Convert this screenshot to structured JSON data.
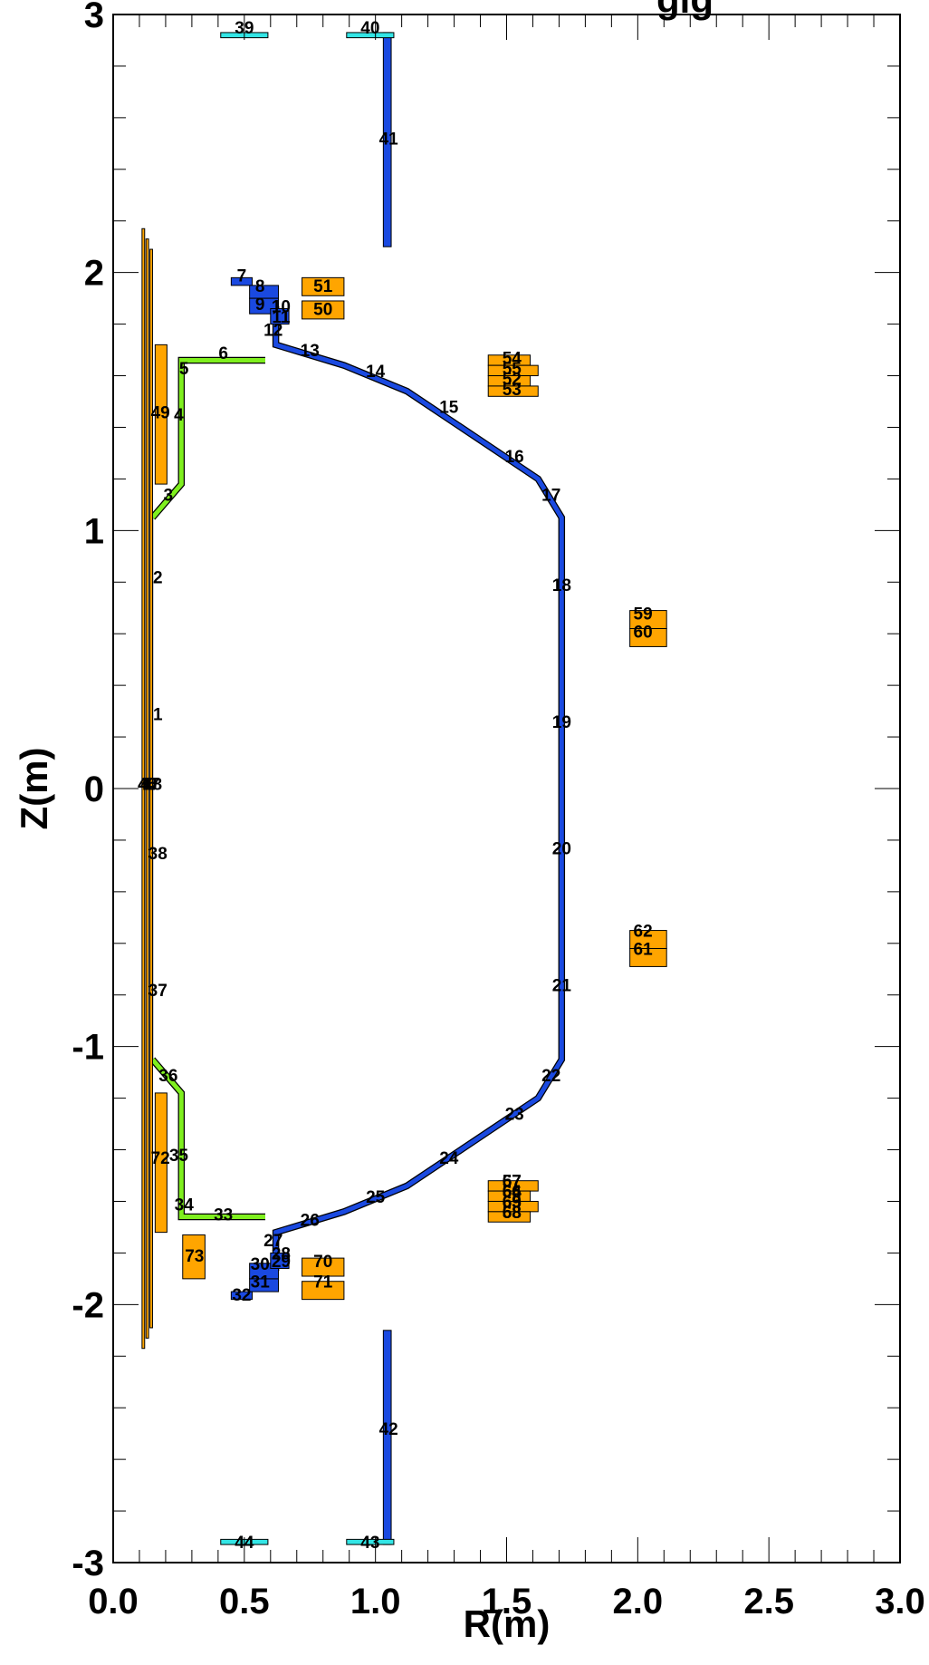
{
  "title_fragment": "gig",
  "chart_data": {
    "type": "diagram",
    "xlabel": "R(m)",
    "ylabel": "Z(m)",
    "xlim": [
      0.0,
      3.0
    ],
    "ylim": [
      -3.0,
      3.0
    ],
    "xticks": [
      {
        "v": 0.0,
        "t": "0.0"
      },
      {
        "v": 0.5,
        "t": "0.5"
      },
      {
        "v": 1.0,
        "t": "1.0"
      },
      {
        "v": 1.5,
        "t": "1.5"
      },
      {
        "v": 2.0,
        "t": "2.0"
      },
      {
        "v": 2.5,
        "t": "2.5"
      },
      {
        "v": 3.0,
        "t": "3.0"
      }
    ],
    "yticks": [
      {
        "v": 3,
        "t": "3"
      },
      {
        "v": 2,
        "t": "2"
      },
      {
        "v": 1,
        "t": "1"
      },
      {
        "v": 0,
        "t": "0"
      },
      {
        "v": -1,
        "t": "-1"
      },
      {
        "v": -2,
        "t": "-2"
      },
      {
        "v": -3,
        "t": "-3"
      }
    ],
    "colors": {
      "vessel": "#1a49e0",
      "green": "#7fef1f",
      "orange": "#ffa500",
      "cyan": "#33e5e5",
      "outline": "#000000"
    },
    "rects": [
      {
        "c": "orange",
        "r0": 0.11,
        "r1": 0.12,
        "z0": -2.17,
        "z1": 2.17
      },
      {
        "c": "orange",
        "r0": 0.125,
        "r1": 0.135,
        "z0": -2.13,
        "z1": 2.13
      },
      {
        "c": "orange",
        "r0": 0.14,
        "r1": 0.15,
        "z0": -2.09,
        "z1": 2.09
      },
      {
        "c": "orange",
        "r0": 0.16,
        "r1": 0.205,
        "z0": 1.18,
        "z1": 1.72
      },
      {
        "c": "orange",
        "r0": 0.16,
        "r1": 0.205,
        "z0": -1.72,
        "z1": -1.18
      },
      {
        "c": "orange",
        "r0": 0.265,
        "r1": 0.35,
        "z0": -1.9,
        "z1": -1.73
      },
      {
        "c": "orange",
        "r0": 0.72,
        "r1": 0.88,
        "z0": 1.91,
        "z1": 1.98
      },
      {
        "c": "orange",
        "r0": 0.72,
        "r1": 0.88,
        "z0": 1.82,
        "z1": 1.89
      },
      {
        "c": "orange",
        "r0": 1.43,
        "r1": 1.59,
        "z0": 1.64,
        "z1": 1.68
      },
      {
        "c": "orange",
        "r0": 1.43,
        "r1": 1.62,
        "z0": 1.6,
        "z1": 1.64
      },
      {
        "c": "orange",
        "r0": 1.43,
        "r1": 1.59,
        "z0": 1.56,
        "z1": 1.6
      },
      {
        "c": "orange",
        "r0": 1.43,
        "r1": 1.62,
        "z0": 1.52,
        "z1": 1.56
      },
      {
        "c": "orange",
        "r0": 1.97,
        "r1": 2.11,
        "z0": 0.62,
        "z1": 0.69
      },
      {
        "c": "orange",
        "r0": 1.97,
        "r1": 2.11,
        "z0": 0.55,
        "z1": 0.62
      },
      {
        "c": "orange",
        "r0": 1.97,
        "r1": 2.11,
        "z0": -0.62,
        "z1": -0.55
      },
      {
        "c": "orange",
        "r0": 1.97,
        "r1": 2.11,
        "z0": -0.69,
        "z1": -0.62
      },
      {
        "c": "orange",
        "r0": 1.43,
        "r1": 1.62,
        "z0": -1.56,
        "z1": -1.52
      },
      {
        "c": "orange",
        "r0": 1.43,
        "r1": 1.59,
        "z0": -1.6,
        "z1": -1.56
      },
      {
        "c": "orange",
        "r0": 1.43,
        "r1": 1.62,
        "z0": -1.64,
        "z1": -1.6
      },
      {
        "c": "orange",
        "r0": 1.43,
        "r1": 1.59,
        "z0": -1.68,
        "z1": -1.64
      },
      {
        "c": "orange",
        "r0": 0.72,
        "r1": 0.88,
        "z0": -1.89,
        "z1": -1.82
      },
      {
        "c": "orange",
        "r0": 0.72,
        "r1": 0.88,
        "z0": -1.98,
        "z1": -1.91
      },
      {
        "c": "vessel",
        "r0": 1.03,
        "r1": 1.06,
        "z0": 2.1,
        "z1": 2.93
      },
      {
        "c": "vessel",
        "r0": 1.03,
        "r1": 1.06,
        "z0": -2.93,
        "z1": -2.1
      },
      {
        "c": "cyan",
        "r0": 0.41,
        "r1": 0.59,
        "z0": 2.91,
        "z1": 2.93
      },
      {
        "c": "cyan",
        "r0": 0.89,
        "r1": 1.07,
        "z0": 2.91,
        "z1": 2.93
      },
      {
        "c": "cyan",
        "r0": 0.41,
        "r1": 0.59,
        "z0": -2.93,
        "z1": -2.91
      },
      {
        "c": "cyan",
        "r0": 0.89,
        "r1": 1.07,
        "z0": -2.93,
        "z1": -2.91
      },
      {
        "c": "vessel",
        "r0": 0.45,
        "r1": 0.53,
        "z0": 1.95,
        "z1": 1.98
      },
      {
        "c": "vessel",
        "r0": 0.52,
        "r1": 0.63,
        "z0": 1.9,
        "z1": 1.95
      },
      {
        "c": "vessel",
        "r0": 0.52,
        "r1": 0.63,
        "z0": 1.84,
        "z1": 1.9
      },
      {
        "c": "vessel",
        "r0": 0.6,
        "r1": 0.67,
        "z0": 1.8,
        "z1": 1.86
      },
      {
        "c": "vessel",
        "r0": 0.45,
        "r1": 0.53,
        "z0": -1.98,
        "z1": -1.95
      },
      {
        "c": "vessel",
        "r0": 0.52,
        "r1": 0.63,
        "z0": -1.95,
        "z1": -1.9
      },
      {
        "c": "vessel",
        "r0": 0.52,
        "r1": 0.63,
        "z0": -1.9,
        "z1": -1.84
      },
      {
        "c": "vessel",
        "r0": 0.6,
        "r1": 0.67,
        "z0": -1.86,
        "z1": -1.8
      }
    ],
    "vessel_outline": [
      [
        0.62,
        1.87
      ],
      [
        0.62,
        1.72
      ],
      [
        0.88,
        1.64
      ],
      [
        1.12,
        1.54
      ],
      [
        1.4,
        1.35
      ],
      [
        1.62,
        1.2
      ],
      [
        1.71,
        1.05
      ],
      [
        1.71,
        -1.05
      ],
      [
        1.62,
        -1.2
      ],
      [
        1.4,
        -1.35
      ],
      [
        1.12,
        -1.54
      ],
      [
        0.88,
        -1.64
      ],
      [
        0.62,
        -1.72
      ],
      [
        0.62,
        -1.87
      ]
    ],
    "green_outline_upper": [
      [
        0.15,
        1.05
      ],
      [
        0.26,
        1.18
      ],
      [
        0.26,
        1.66
      ],
      [
        0.58,
        1.66
      ]
    ],
    "green_outline_lower": [
      [
        0.15,
        -1.05
      ],
      [
        0.26,
        -1.18
      ],
      [
        0.26,
        -1.66
      ],
      [
        0.58,
        -1.66
      ]
    ],
    "inner_wall_line": {
      "r": 0.15,
      "z0": -1.05,
      "z1": 1.05
    },
    "labels": [
      {
        "t": "1",
        "r": 0.17,
        "z": 0.29
      },
      {
        "t": "2",
        "r": 0.17,
        "z": 0.82
      },
      {
        "t": "3",
        "r": 0.21,
        "z": 1.14
      },
      {
        "t": "4",
        "r": 0.25,
        "z": 1.45
      },
      {
        "t": "5",
        "r": 0.27,
        "z": 1.63
      },
      {
        "t": "6",
        "r": 0.42,
        "z": 1.69
      },
      {
        "t": "7",
        "r": 0.49,
        "z": 1.99
      },
      {
        "t": "8",
        "r": 0.56,
        "z": 1.95
      },
      {
        "t": "9",
        "r": 0.56,
        "z": 1.88
      },
      {
        "t": "10",
        "r": 0.64,
        "z": 1.87
      },
      {
        "t": "11",
        "r": 0.64,
        "z": 1.83
      },
      {
        "t": "12",
        "r": 0.61,
        "z": 1.78
      },
      {
        "t": "13",
        "r": 0.75,
        "z": 1.7
      },
      {
        "t": "14",
        "r": 1.0,
        "z": 1.62
      },
      {
        "t": "15",
        "r": 1.28,
        "z": 1.48
      },
      {
        "t": "16",
        "r": 1.53,
        "z": 1.29
      },
      {
        "t": "17",
        "r": 1.67,
        "z": 1.14
      },
      {
        "t": "18",
        "r": 1.71,
        "z": 0.79
      },
      {
        "t": "19",
        "r": 1.71,
        "z": 0.26
      },
      {
        "t": "20",
        "r": 1.71,
        "z": -0.23
      },
      {
        "t": "21",
        "r": 1.71,
        "z": -0.76
      },
      {
        "t": "22",
        "r": 1.67,
        "z": -1.11
      },
      {
        "t": "23",
        "r": 1.53,
        "z": -1.26
      },
      {
        "t": "24",
        "r": 1.28,
        "z": -1.43
      },
      {
        "t": "25",
        "r": 1.0,
        "z": -1.58
      },
      {
        "t": "26",
        "r": 0.75,
        "z": -1.67
      },
      {
        "t": "27",
        "r": 0.61,
        "z": -1.75
      },
      {
        "t": "28",
        "r": 0.64,
        "z": -1.8
      },
      {
        "t": "29",
        "r": 0.64,
        "z": -1.83
      },
      {
        "t": "30",
        "r": 0.56,
        "z": -1.84
      },
      {
        "t": "31",
        "r": 0.56,
        "z": -1.91
      },
      {
        "t": "32",
        "r": 0.49,
        "z": -1.96
      },
      {
        "t": "33",
        "r": 0.42,
        "z": -1.65
      },
      {
        "t": "34",
        "r": 0.27,
        "z": -1.61
      },
      {
        "t": "35",
        "r": 0.25,
        "z": -1.42
      },
      {
        "t": "36",
        "r": 0.21,
        "z": -1.11
      },
      {
        "t": "37",
        "r": 0.17,
        "z": -0.78
      },
      {
        "t": "38",
        "r": 0.17,
        "z": -0.25
      },
      {
        "t": "39",
        "r": 0.5,
        "z": 2.95
      },
      {
        "t": "40",
        "r": 0.98,
        "z": 2.95
      },
      {
        "t": "41",
        "r": 1.05,
        "z": 2.52
      },
      {
        "t": "42",
        "r": 1.05,
        "z": -2.48
      },
      {
        "t": "43",
        "r": 0.98,
        "z": -2.92
      },
      {
        "t": "44",
        "r": 0.5,
        "z": -2.92
      },
      {
        "t": "45",
        "r": 0.13,
        "z": 0.02
      },
      {
        "t": "46",
        "r": 0.13,
        "z": 0.02
      },
      {
        "t": "47",
        "r": 0.14,
        "z": 0.02
      },
      {
        "t": "48",
        "r": 0.15,
        "z": 0.02
      },
      {
        "t": "49",
        "r": 0.18,
        "z": 1.46
      },
      {
        "t": "50",
        "r": 0.8,
        "z": 1.86
      },
      {
        "t": "51",
        "r": 0.8,
        "z": 1.95
      },
      {
        "t": "52",
        "r": 1.52,
        "z": 1.59
      },
      {
        "t": "53",
        "r": 1.52,
        "z": 1.55
      },
      {
        "t": "54",
        "r": 1.52,
        "z": 1.67
      },
      {
        "t": "55",
        "r": 1.52,
        "z": 1.63
      },
      {
        "t": "56",
        "r": 1.52,
        "z": -1.56
      },
      {
        "t": "57",
        "r": 1.52,
        "z": -1.52
      },
      {
        "t": "58",
        "r": 1.52,
        "z": -1.64
      },
      {
        "t": "59",
        "r": 2.02,
        "z": 0.68
      },
      {
        "t": "60",
        "r": 2.02,
        "z": 0.61
      },
      {
        "t": "61",
        "r": 2.02,
        "z": -0.62
      },
      {
        "t": "62",
        "r": 2.02,
        "z": -0.55
      },
      {
        "t": "63",
        "r": 1.52,
        "z": -1.6
      },
      {
        "t": "64",
        "r": 1.52,
        "z": -1.56
      },
      {
        "t": "65",
        "r": 1.52,
        "z": -1.6
      },
      {
        "t": "66",
        "r": 1.52,
        "z": -1.56
      },
      {
        "t": "67",
        "r": 1.52,
        "z": -1.52
      },
      {
        "t": "68",
        "r": 1.52,
        "z": -1.64
      },
      {
        "t": "69",
        "r": 1.52,
        "z": -1.6
      },
      {
        "t": "70",
        "r": 0.8,
        "z": -1.83
      },
      {
        "t": "71",
        "r": 0.8,
        "z": -1.91
      },
      {
        "t": "72",
        "r": 0.18,
        "z": -1.43
      },
      {
        "t": "73",
        "r": 0.31,
        "z": -1.81
      }
    ]
  }
}
